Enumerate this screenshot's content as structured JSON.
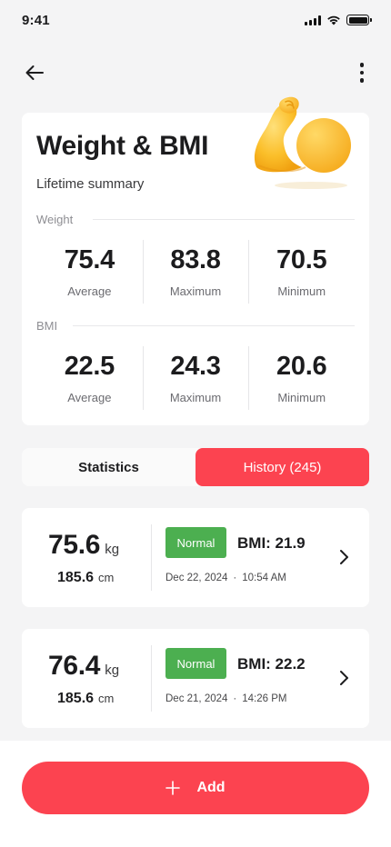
{
  "status_bar": {
    "time": "9:41"
  },
  "icons": {
    "back": "back-arrow-icon",
    "more": "more-vertical-icon",
    "chevron": "chevron-right-icon",
    "add": "plus-icon",
    "mascot": "flexed-bicep-illustration"
  },
  "summary": {
    "title": "Weight & BMI",
    "subtitle": "Lifetime summary",
    "weight": {
      "label": "Weight",
      "stats": [
        {
          "value": "75.4",
          "label": "Average"
        },
        {
          "value": "83.8",
          "label": "Maximum"
        },
        {
          "value": "70.5",
          "label": "Minimum"
        }
      ]
    },
    "bmi": {
      "label": "BMI",
      "stats": [
        {
          "value": "22.5",
          "label": "Average"
        },
        {
          "value": "24.3",
          "label": "Maximum"
        },
        {
          "value": "20.6",
          "label": "Minimum"
        }
      ]
    }
  },
  "tabs": [
    {
      "label": "Statistics",
      "active": false
    },
    {
      "label": "History (245)",
      "active": true
    }
  ],
  "history": [
    {
      "weight": "75.6",
      "weight_unit": "kg",
      "height": "185.6",
      "height_unit": "cm",
      "badge": "Normal",
      "bmi": "BMI: 21.9",
      "date": "Dec 22, 2024",
      "sep": "·",
      "time": "10:54 AM"
    },
    {
      "weight": "76.4",
      "weight_unit": "kg",
      "height": "185.6",
      "height_unit": "cm",
      "badge": "Normal",
      "bmi": "BMI: 22.2",
      "date": "Dec 21, 2024",
      "sep": "·",
      "time": "14:26 PM"
    }
  ],
  "add_button": {
    "label": "Add"
  },
  "colors": {
    "accent": "#fc4350",
    "normal_badge": "#4caf50",
    "background": "#f4f4f5"
  }
}
